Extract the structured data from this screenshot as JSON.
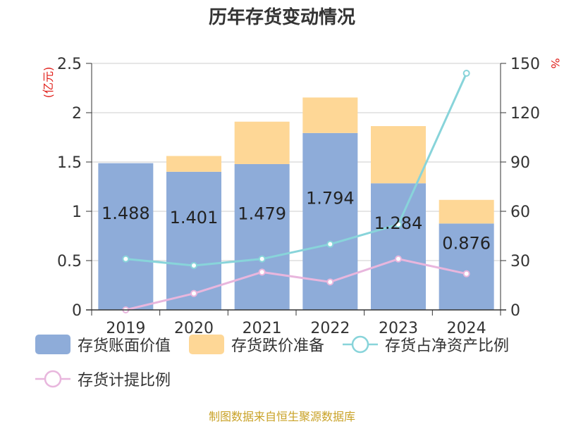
{
  "title": "历年存货变动情况",
  "source": "制图数据来自恒生聚源数据库",
  "colors": {
    "bar_book": "#8eacd9",
    "bar_reserve": "#fed796",
    "line_net_asset_ratio": "#88d4da",
    "line_provision_ratio": "#e8b6dd",
    "axis_unit": "#e0201b",
    "source_text": "#c9a227"
  },
  "chart_data": {
    "type": "bar",
    "stacked": true,
    "categories": [
      "2019",
      "2020",
      "2021",
      "2022",
      "2023",
      "2024"
    ],
    "y_left": {
      "unit": "(亿元)",
      "ylim": [
        0,
        2.5
      ],
      "ticks": [
        "0",
        "0.5",
        "1",
        "1.5",
        "2",
        "2.5"
      ]
    },
    "y_right": {
      "unit": "%",
      "ylim": [
        0,
        150
      ],
      "ticks": [
        "0",
        "30",
        "60",
        "90",
        "120",
        "150"
      ]
    },
    "grid": true,
    "legend_position": "bottom",
    "series": [
      {
        "name": "存货账面价值",
        "type": "bar",
        "axis": "left",
        "values": [
          1.488,
          1.401,
          1.479,
          1.794,
          1.284,
          0.876
        ],
        "labels": [
          "1.488",
          "1.401",
          "1.479",
          "1.794",
          "1.284",
          "0.876"
        ]
      },
      {
        "name": "存货跌价准备",
        "type": "bar",
        "axis": "left",
        "values": [
          0.0,
          0.16,
          0.43,
          0.36,
          0.58,
          0.24
        ]
      },
      {
        "name": "存货占净资产比例",
        "type": "line",
        "axis": "right",
        "values": [
          31,
          27,
          31,
          40,
          52,
          144
        ]
      },
      {
        "name": "存货计提比例",
        "type": "line",
        "axis": "right",
        "values": [
          0,
          10,
          23,
          17,
          31,
          22
        ]
      }
    ]
  }
}
